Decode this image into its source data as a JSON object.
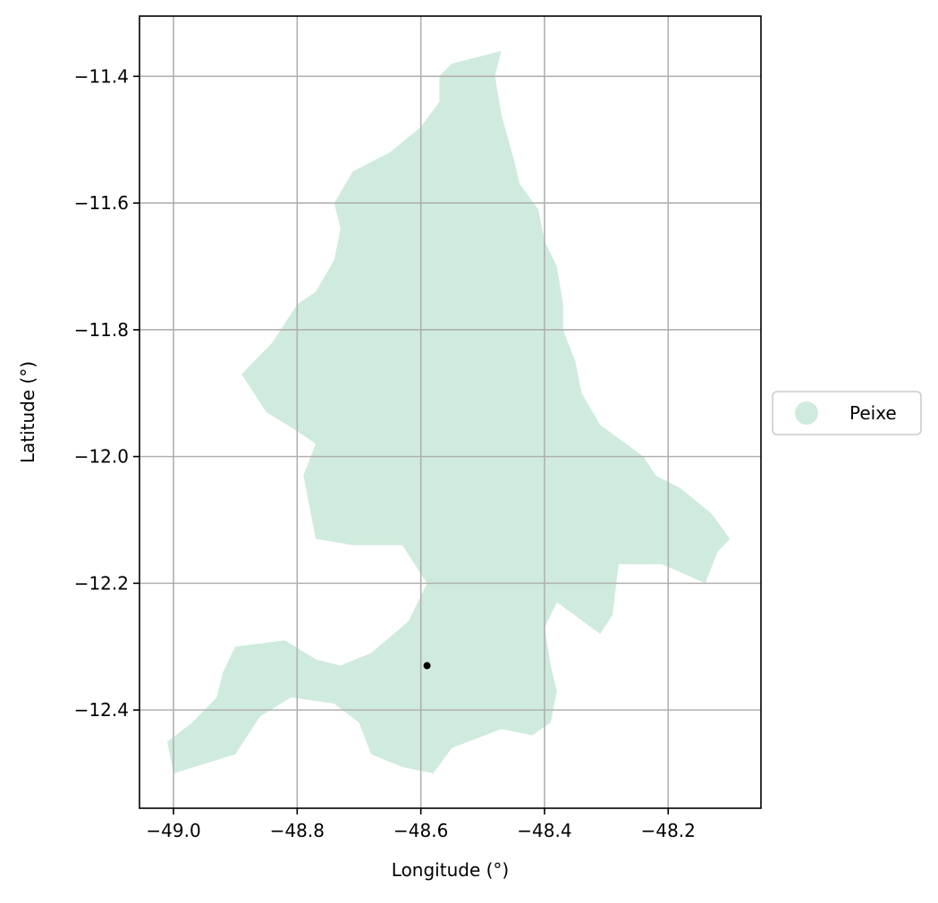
{
  "map": {
    "type": "choropleth",
    "x_axis": {
      "label": "Longitude (°)",
      "range": [
        -49.055,
        -48.05
      ],
      "ticks": [
        {
          "value": -49.0,
          "label": "−49.0"
        },
        {
          "value": -48.8,
          "label": "−48.8"
        },
        {
          "value": -48.6,
          "label": "−48.6"
        },
        {
          "value": -48.4,
          "label": "−48.4"
        },
        {
          "value": -48.2,
          "label": "−48.2"
        }
      ]
    },
    "y_axis": {
      "label": "Latitude (°)",
      "range": [
        -12.555,
        -11.305
      ],
      "ticks": [
        {
          "value": -11.4,
          "label": "−11.4"
        },
        {
          "value": -11.6,
          "label": "−11.6"
        },
        {
          "value": -11.8,
          "label": "−11.8"
        },
        {
          "value": -12.0,
          "label": "−12.0"
        },
        {
          "value": -12.2,
          "label": "−12.2"
        },
        {
          "value": -12.4,
          "label": "−12.4"
        }
      ]
    },
    "grid": true,
    "legend": {
      "placement": "right",
      "entries": [
        {
          "label": "Peixe",
          "color": "#cfebdd"
        }
      ]
    },
    "regions": [
      {
        "name": "Peixe",
        "color": "#cfebdd",
        "outline": [
          [
            -48.57,
            -11.4
          ],
          [
            -48.55,
            -11.38
          ],
          [
            -48.51,
            -11.37
          ],
          [
            -48.47,
            -11.36
          ],
          [
            -48.48,
            -11.4
          ],
          [
            -48.47,
            -11.46
          ],
          [
            -48.45,
            -11.53
          ],
          [
            -48.44,
            -11.57
          ],
          [
            -48.41,
            -11.61
          ],
          [
            -48.4,
            -11.66
          ],
          [
            -48.38,
            -11.7
          ],
          [
            -48.37,
            -11.76
          ],
          [
            -48.37,
            -11.8
          ],
          [
            -48.35,
            -11.85
          ],
          [
            -48.34,
            -11.9
          ],
          [
            -48.31,
            -11.95
          ],
          [
            -48.24,
            -12.0
          ],
          [
            -48.22,
            -12.03
          ],
          [
            -48.18,
            -12.05
          ],
          [
            -48.13,
            -12.09
          ],
          [
            -48.1,
            -12.13
          ],
          [
            -48.12,
            -12.15
          ],
          [
            -48.14,
            -12.2
          ],
          [
            -48.21,
            -12.17
          ],
          [
            -48.28,
            -12.17
          ],
          [
            -48.29,
            -12.25
          ],
          [
            -48.31,
            -12.28
          ],
          [
            -48.38,
            -12.23
          ],
          [
            -48.4,
            -12.27
          ],
          [
            -48.39,
            -12.33
          ],
          [
            -48.38,
            -12.37
          ],
          [
            -48.39,
            -12.42
          ],
          [
            -48.42,
            -12.44
          ],
          [
            -48.47,
            -12.43
          ],
          [
            -48.55,
            -12.46
          ],
          [
            -48.58,
            -12.5
          ],
          [
            -48.63,
            -12.49
          ],
          [
            -48.68,
            -12.47
          ],
          [
            -48.7,
            -12.42
          ],
          [
            -48.74,
            -12.39
          ],
          [
            -48.81,
            -12.38
          ],
          [
            -48.86,
            -12.41
          ],
          [
            -48.9,
            -12.47
          ],
          [
            -49.0,
            -12.5
          ],
          [
            -49.01,
            -12.45
          ],
          [
            -48.97,
            -12.42
          ],
          [
            -48.93,
            -12.38
          ],
          [
            -48.92,
            -12.34
          ],
          [
            -48.9,
            -12.3
          ],
          [
            -48.82,
            -12.29
          ],
          [
            -48.77,
            -12.32
          ],
          [
            -48.73,
            -12.33
          ],
          [
            -48.68,
            -12.31
          ],
          [
            -48.62,
            -12.26
          ],
          [
            -48.59,
            -12.2
          ],
          [
            -48.63,
            -12.14
          ],
          [
            -48.71,
            -12.14
          ],
          [
            -48.77,
            -12.13
          ],
          [
            -48.79,
            -12.03
          ],
          [
            -48.77,
            -11.98
          ],
          [
            -48.8,
            -11.96
          ],
          [
            -48.85,
            -11.93
          ],
          [
            -48.89,
            -11.87
          ],
          [
            -48.87,
            -11.85
          ],
          [
            -48.84,
            -11.82
          ],
          [
            -48.82,
            -11.79
          ],
          [
            -48.8,
            -11.76
          ],
          [
            -48.77,
            -11.74
          ],
          [
            -48.74,
            -11.69
          ],
          [
            -48.73,
            -11.64
          ],
          [
            -48.74,
            -11.6
          ],
          [
            -48.71,
            -11.55
          ],
          [
            -48.65,
            -11.52
          ],
          [
            -48.6,
            -11.48
          ],
          [
            -48.57,
            -11.44
          ]
        ]
      }
    ],
    "point_marker": {
      "lon": -48.59,
      "lat": -12.33,
      "color": "#000000"
    }
  }
}
